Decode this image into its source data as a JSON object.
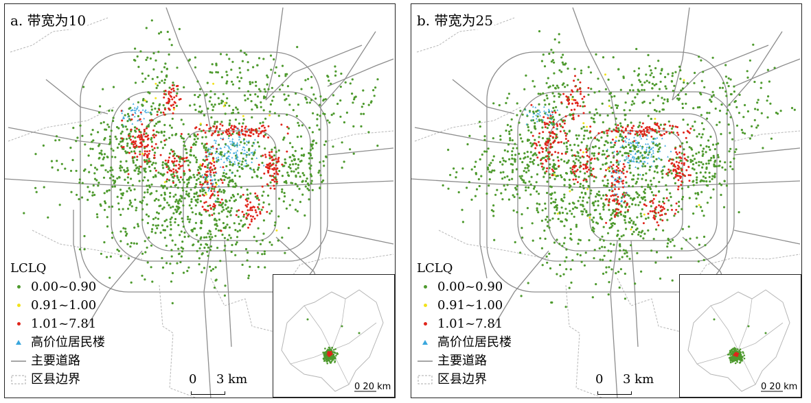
{
  "panels": [
    {
      "title": "a. 带宽为10",
      "seed": 11
    },
    {
      "title": "b. 带宽为25",
      "seed": 29
    }
  ],
  "legend": {
    "title": "LCLQ",
    "items": [
      {
        "label": "0.00~0.90",
        "color": "#4e9a2e",
        "symbol": "dot"
      },
      {
        "label": "0.91~1.00",
        "color": "#f2e21b",
        "symbol": "dot"
      },
      {
        "label": "1.01~7.81",
        "color": "#e0251b",
        "symbol": "dot"
      },
      {
        "label": "高价位居民楼",
        "color": "#39a7dd",
        "symbol": "triangle-icon"
      },
      {
        "label": "主要道路",
        "color": "#888888",
        "symbol": "line"
      },
      {
        "label": "区县边界",
        "color": "#aaaaaa",
        "symbol": "dashed-box"
      }
    ]
  },
  "scale": {
    "zero": "0",
    "main": "3 km",
    "inset_zero": "0",
    "inset": "20 km"
  },
  "colors": {
    "green": "#4e9a2e",
    "yellow": "#f2e21b",
    "red": "#e0251b",
    "blue": "#39a7dd",
    "road": "#8c8c8c",
    "boundary": "#b5b5b5"
  }
}
